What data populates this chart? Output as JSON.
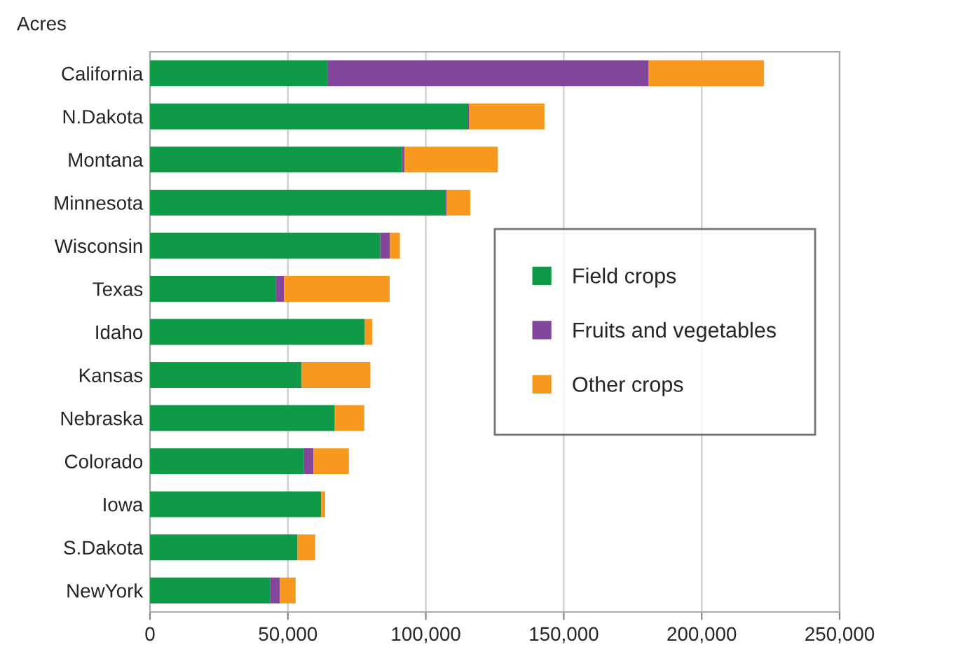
{
  "chart_data": {
    "type": "bar",
    "orientation": "horizontal",
    "stacked": true,
    "ylabel": "Acres",
    "categories": [
      "California",
      "N.Dakota",
      "Montana",
      "Minnesota",
      "Wisconsin",
      "Texas",
      "Idaho",
      "Kansas",
      "Nebraska",
      "Colorado",
      "Iowa",
      "S.Dakota",
      "NewYork"
    ],
    "series": [
      {
        "name": "Field crops",
        "color": "#0f9a48",
        "values": [
          64300,
          115100,
          91400,
          107200,
          83500,
          45700,
          77900,
          55000,
          67000,
          55700,
          62100,
          53500,
          43500
        ]
      },
      {
        "name": "Fruits and vegetables",
        "color": "#82479a",
        "values": [
          116500,
          500,
          800,
          300,
          3500,
          2900,
          null,
          null,
          null,
          3600,
          null,
          null,
          3600
        ]
      },
      {
        "name": "Other crops",
        "color": "#f7991f",
        "values": [
          41800,
          27400,
          33900,
          8600,
          3600,
          38300,
          2700,
          24900,
          10700,
          12800,
          1400,
          6400,
          5700
        ]
      }
    ],
    "xlim": [
      0,
      250000
    ],
    "xticks": [
      0,
      {
        "value": 50000,
        "label": "50,000"
      },
      {
        "value": 100000,
        "label": "100,000"
      },
      {
        "value": 150000,
        "label": "150,000"
      },
      {
        "value": 200000,
        "label": "200,000"
      },
      {
        "value": 250000,
        "label": "250,000"
      }
    ],
    "grid": "x",
    "legend": "right"
  }
}
